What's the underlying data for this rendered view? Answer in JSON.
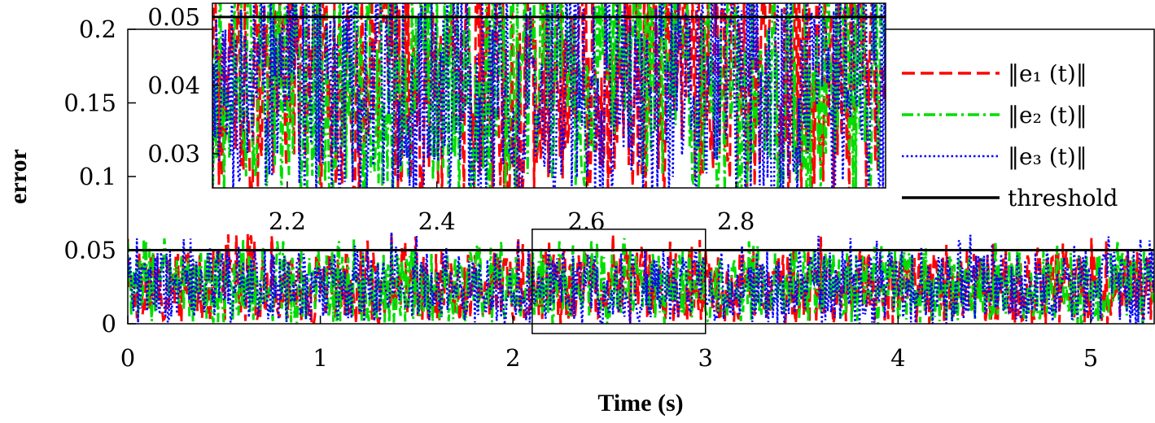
{
  "chart_data": {
    "type": "line",
    "xlabel": "Time (s)",
    "ylabel": "error",
    "xlim": [
      0,
      5.33
    ],
    "ylim": [
      0,
      0.2
    ],
    "x_ticks": [
      0,
      1,
      2,
      3,
      4,
      5
    ],
    "y_ticks": [
      0,
      0.05,
      0.1,
      0.15,
      0.2
    ],
    "grid": false,
    "legend_placement": "top-right",
    "threshold": 0.05,
    "series": [
      {
        "name": "‖e₁(t)‖",
        "color": "#ff0000",
        "style": "dashed",
        "typical_range": [
          0.0,
          0.05
        ],
        "peak": 0.062
      },
      {
        "name": "‖e₂(t)‖",
        "color": "#00dd00",
        "style": "dashdot",
        "typical_range": [
          0.0,
          0.05
        ],
        "peak": 0.058
      },
      {
        "name": "‖e₃(t)‖",
        "color": "#0000ff",
        "style": "dotted",
        "typical_range": [
          0.0,
          0.05
        ],
        "peak": 0.08
      }
    ],
    "legend": [
      {
        "label": "‖e₁ (t)‖",
        "color": "#ff0000",
        "style": "dashed"
      },
      {
        "label": "‖e₂ (t)‖",
        "color": "#00dd00",
        "style": "dashdot"
      },
      {
        "label": "‖e₃ (t)‖",
        "color": "#0000ff",
        "style": "dotted"
      },
      {
        "label": "threshold",
        "color": "#000000",
        "style": "solid"
      }
    ],
    "zoom_region": {
      "x_range": [
        2.1,
        3.0
      ],
      "y_range": [
        0,
        0.062
      ]
    },
    "inset": {
      "xlim": [
        2.1,
        3.0
      ],
      "ylim": [
        0.025,
        0.052
      ],
      "x_ticks": [
        2.2,
        2.4,
        2.6,
        2.8
      ],
      "y_ticks": [
        0.03,
        0.04,
        0.05
      ],
      "threshold": 0.05
    }
  }
}
